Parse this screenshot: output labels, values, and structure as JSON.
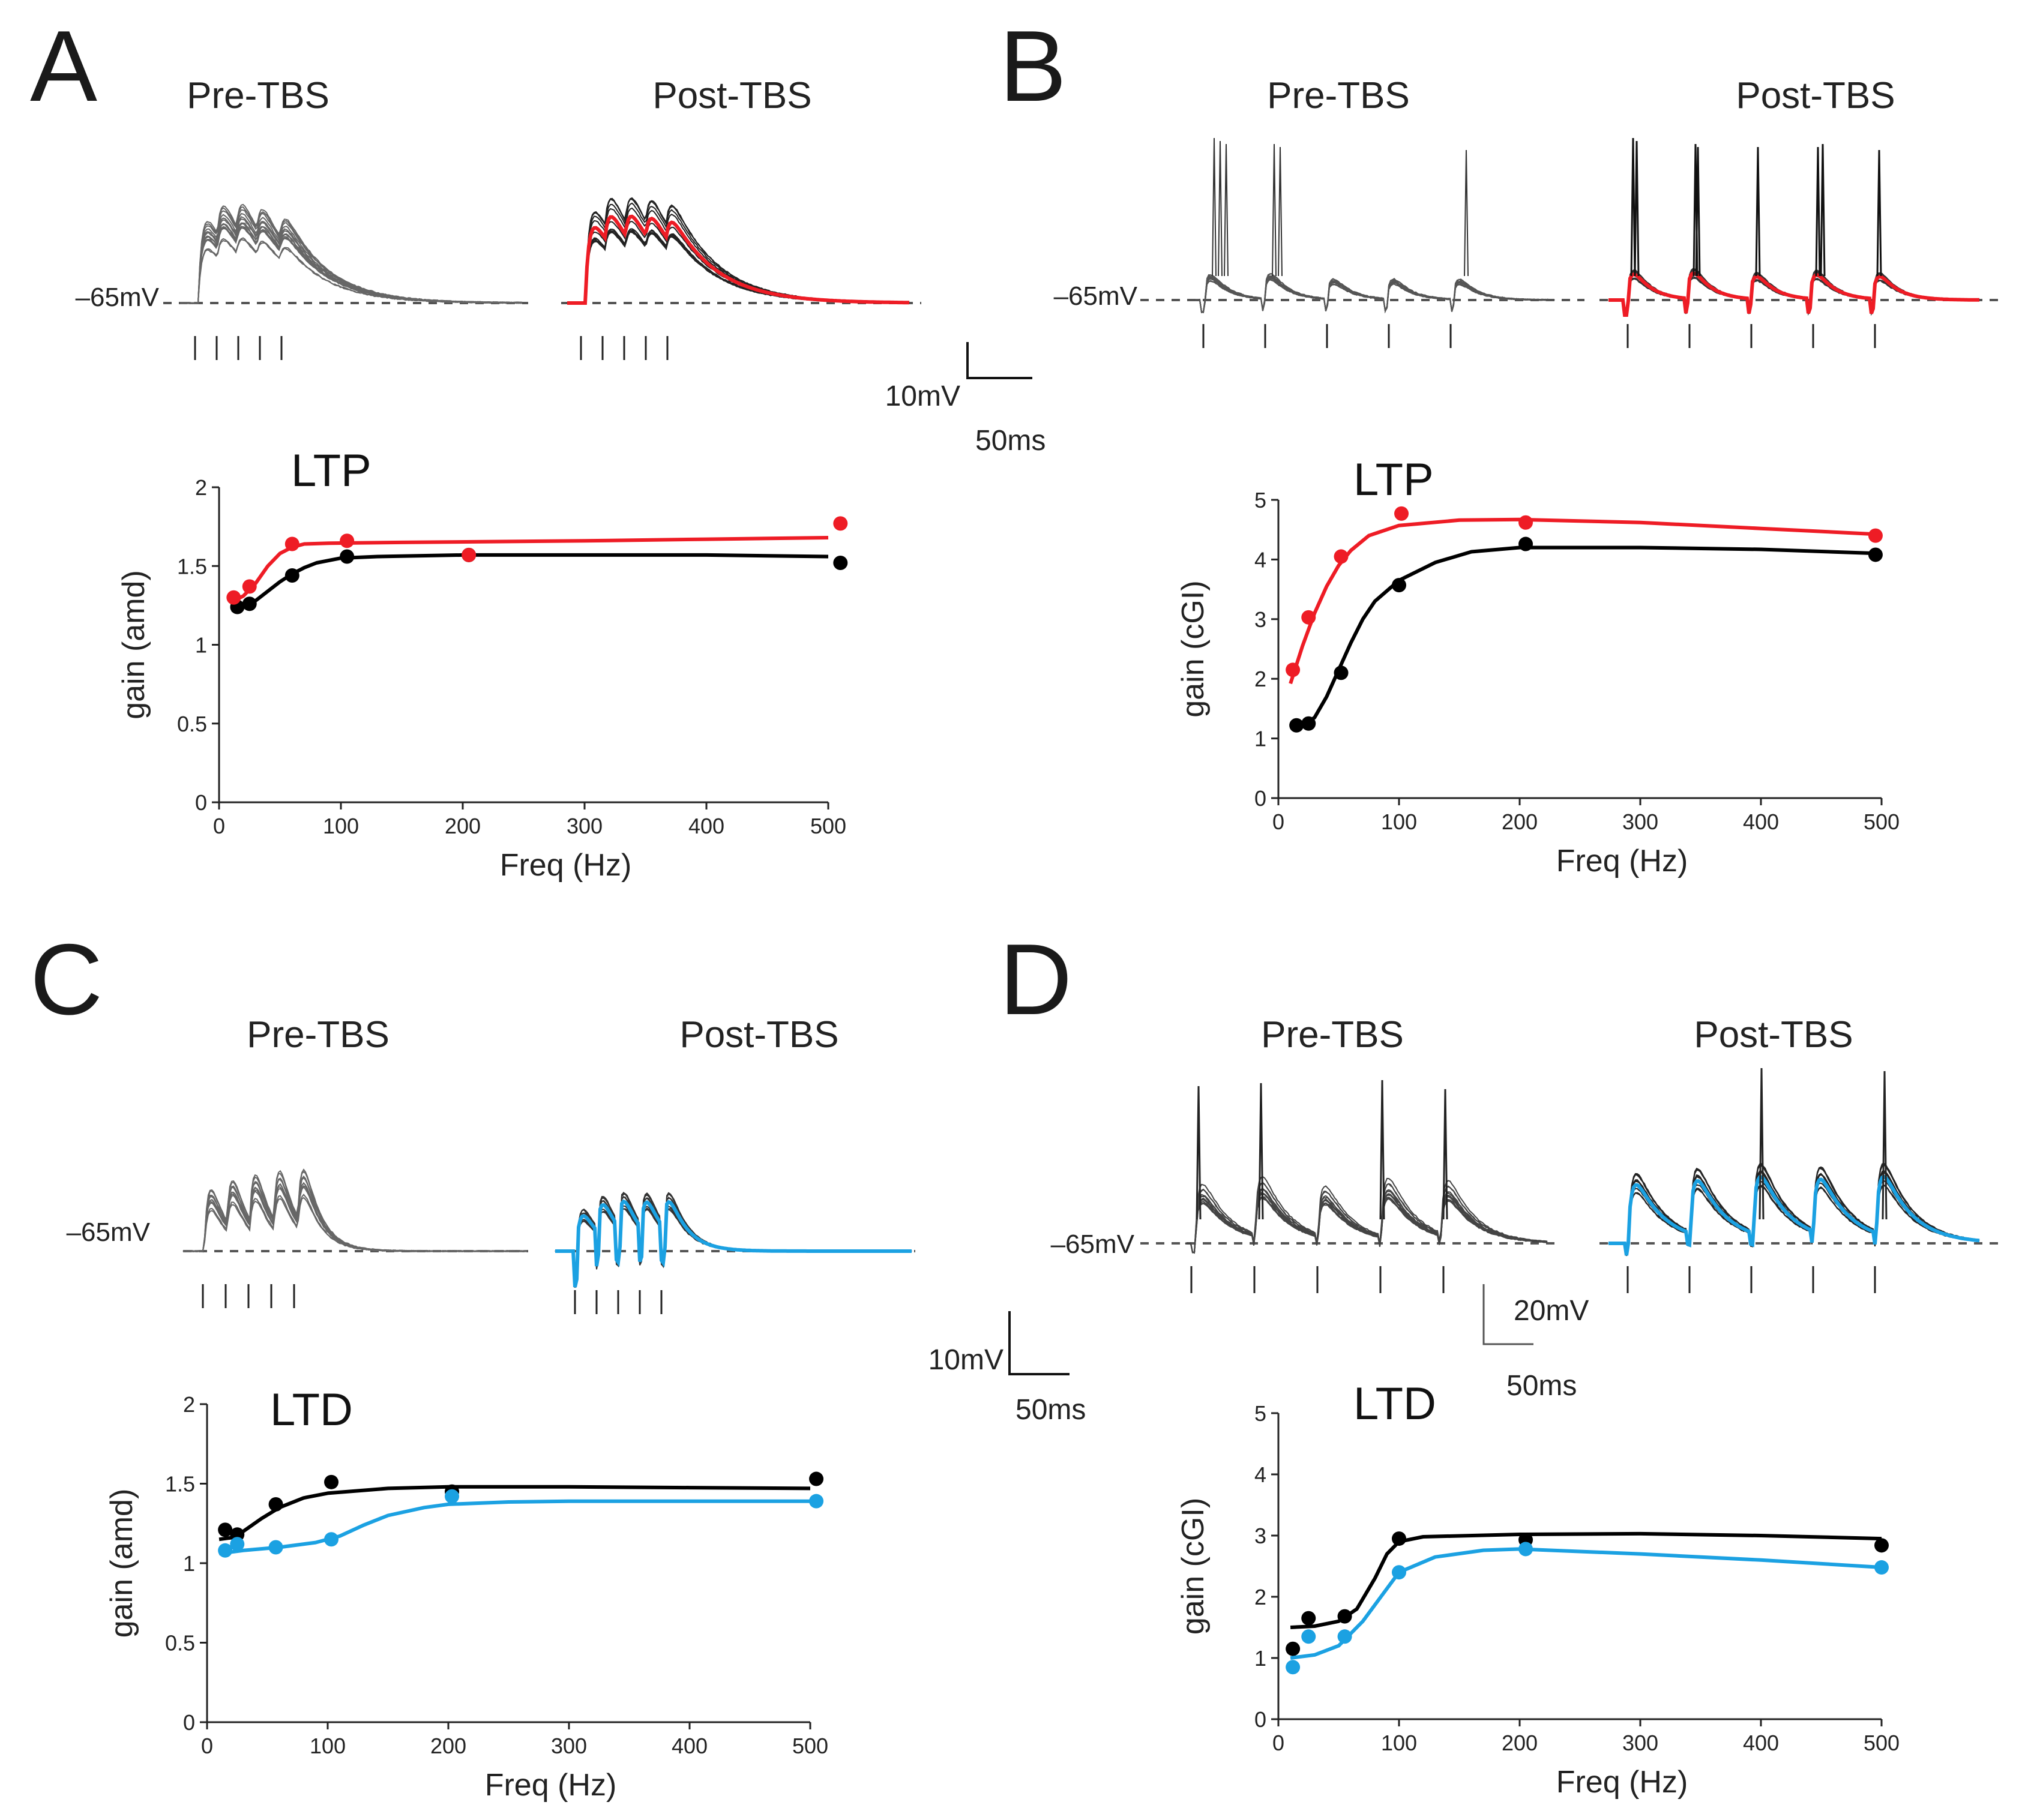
{
  "colors": {
    "pre": "#000000",
    "post_ltp": "#ee1c25",
    "post_ltd": "#1ba1e2",
    "trace_gray": "#555555",
    "baseline": "#555555"
  },
  "trace_labels": {
    "pre": "Pre-TBS",
    "post": "Post-TBS"
  },
  "baseline_label": "–65mV",
  "scale_bars": {
    "a": {
      "v": "10mV",
      "t": "50ms"
    },
    "c": {
      "v": "10mV",
      "t": "50ms"
    },
    "d": {
      "v": "20mV",
      "t": "50ms"
    }
  },
  "panels": {
    "a": {
      "letter": "A"
    },
    "b": {
      "letter": "B"
    },
    "c": {
      "letter": "C"
    },
    "d": {
      "letter": "D"
    }
  },
  "chart_data": [
    {
      "id": "A",
      "type": "scatter",
      "title": "LTP",
      "xlabel": "Freq (Hz)",
      "ylabel": "gain (amd)",
      "xlim": [
        0,
        500
      ],
      "ylim": [
        0,
        2
      ],
      "xticks": [
        0,
        100,
        200,
        300,
        400,
        500
      ],
      "yticks": [
        0,
        0.5,
        1,
        1.5,
        2
      ],
      "ytick_labels": [
        "0",
        "0.5",
        "1",
        "1.5",
        "2"
      ],
      "series": [
        {
          "name": "Pre-TBS",
          "color": "#000000",
          "points": [
            [
              15,
              1.24
            ],
            [
              25,
              1.26
            ],
            [
              60,
              1.44
            ],
            [
              105,
              1.56
            ],
            [
              205,
              1.57
            ],
            [
              510,
              1.52
            ]
          ],
          "fit": [
            [
              10,
              1.22
            ],
            [
              20,
              1.24
            ],
            [
              30,
              1.28
            ],
            [
              40,
              1.34
            ],
            [
              50,
              1.4
            ],
            [
              60,
              1.45
            ],
            [
              70,
              1.49
            ],
            [
              80,
              1.52
            ],
            [
              100,
              1.55
            ],
            [
              130,
              1.56
            ],
            [
              200,
              1.57
            ],
            [
              300,
              1.57
            ],
            [
              400,
              1.57
            ],
            [
              500,
              1.56
            ]
          ]
        },
        {
          "name": "Post-TBS",
          "color": "#ee1c25",
          "points": [
            [
              12,
              1.3
            ],
            [
              25,
              1.37
            ],
            [
              60,
              1.64
            ],
            [
              105,
              1.66
            ],
            [
              205,
              1.57
            ],
            [
              510,
              1.77
            ]
          ],
          "fit": [
            [
              10,
              1.27
            ],
            [
              20,
              1.31
            ],
            [
              30,
              1.39
            ],
            [
              40,
              1.5
            ],
            [
              50,
              1.58
            ],
            [
              60,
              1.62
            ],
            [
              70,
              1.64
            ],
            [
              90,
              1.645
            ],
            [
              150,
              1.65
            ],
            [
              300,
              1.66
            ],
            [
              400,
              1.67
            ],
            [
              500,
              1.68
            ]
          ]
        }
      ]
    },
    {
      "id": "B",
      "type": "scatter",
      "title": "LTP",
      "xlabel": "Freq (Hz)",
      "ylabel": "gain (cGI)",
      "xlim": [
        0,
        500
      ],
      "ylim": [
        0,
        5
      ],
      "xticks": [
        0,
        100,
        200,
        300,
        400,
        500
      ],
      "yticks": [
        0,
        1,
        2,
        3,
        4,
        5
      ],
      "ytick_labels": [
        "0",
        "1",
        "2",
        "3",
        "4",
        "5"
      ],
      "series": [
        {
          "name": "Pre-TBS",
          "color": "#000000",
          "points": [
            [
              15,
              1.22
            ],
            [
              25,
              1.25
            ],
            [
              52,
              2.1
            ],
            [
              100,
              3.57
            ],
            [
              205,
              4.26
            ],
            [
              495,
              4.08
            ]
          ],
          "fit": [
            [
              10,
              1.18
            ],
            [
              20,
              1.22
            ],
            [
              30,
              1.35
            ],
            [
              40,
              1.7
            ],
            [
              50,
              2.15
            ],
            [
              60,
              2.6
            ],
            [
              70,
              3.0
            ],
            [
              80,
              3.3
            ],
            [
              100,
              3.65
            ],
            [
              130,
              3.95
            ],
            [
              160,
              4.13
            ],
            [
              200,
              4.2
            ],
            [
              300,
              4.2
            ],
            [
              400,
              4.17
            ],
            [
              500,
              4.1
            ]
          ]
        },
        {
          "name": "Post-TBS",
          "color": "#ee1c25",
          "points": [
            [
              12,
              2.15
            ],
            [
              25,
              3.03
            ],
            [
              52,
              4.05
            ],
            [
              102,
              4.77
            ],
            [
              205,
              4.62
            ],
            [
              495,
              4.4
            ]
          ],
          "fit": [
            [
              10,
              1.92
            ],
            [
              20,
              2.55
            ],
            [
              30,
              3.1
            ],
            [
              40,
              3.55
            ],
            [
              50,
              3.9
            ],
            [
              60,
              4.15
            ],
            [
              75,
              4.4
            ],
            [
              100,
              4.57
            ],
            [
              150,
              4.66
            ],
            [
              200,
              4.67
            ],
            [
              300,
              4.62
            ],
            [
              400,
              4.52
            ],
            [
              500,
              4.42
            ]
          ]
        }
      ]
    },
    {
      "id": "C",
      "type": "scatter",
      "title": "LTD",
      "xlabel": "Freq (Hz)",
      "ylabel": "gain (amd)",
      "xlim": [
        0,
        500
      ],
      "ylim": [
        0,
        2
      ],
      "xticks": [
        0,
        100,
        200,
        300,
        400,
        500
      ],
      "yticks": [
        0,
        0.5,
        1,
        1.5,
        2
      ],
      "ytick_labels": [
        "0",
        "0.5",
        "1",
        "1.5",
        "2"
      ],
      "series": [
        {
          "name": "Pre-TBS",
          "color": "#000000",
          "points": [
            [
              15,
              1.21
            ],
            [
              25,
              1.18
            ],
            [
              57,
              1.37
            ],
            [
              103,
              1.51
            ],
            [
              203,
              1.45
            ],
            [
              505,
              1.53
            ]
          ],
          "fit": [
            [
              10,
              1.15
            ],
            [
              20,
              1.16
            ],
            [
              30,
              1.2
            ],
            [
              45,
              1.28
            ],
            [
              60,
              1.35
            ],
            [
              80,
              1.41
            ],
            [
              100,
              1.44
            ],
            [
              150,
              1.47
            ],
            [
              200,
              1.48
            ],
            [
              300,
              1.48
            ],
            [
              400,
              1.475
            ],
            [
              500,
              1.47
            ]
          ]
        },
        {
          "name": "Post-TBS",
          "color": "#1ba1e2",
          "points": [
            [
              15,
              1.08
            ],
            [
              25,
              1.12
            ],
            [
              57,
              1.1
            ],
            [
              103,
              1.15
            ],
            [
              203,
              1.42
            ],
            [
              505,
              1.39
            ]
          ],
          "fit": [
            [
              10,
              1.06
            ],
            [
              30,
              1.08
            ],
            [
              60,
              1.1
            ],
            [
              90,
              1.13
            ],
            [
              110,
              1.17
            ],
            [
              130,
              1.24
            ],
            [
              150,
              1.3
            ],
            [
              180,
              1.35
            ],
            [
              200,
              1.37
            ],
            [
              250,
              1.385
            ],
            [
              300,
              1.39
            ],
            [
              400,
              1.39
            ],
            [
              500,
              1.39
            ]
          ]
        }
      ]
    },
    {
      "id": "D",
      "type": "scatter",
      "title": "LTD",
      "xlabel": "Freq (Hz)",
      "ylabel": "gain (cGI)",
      "xlim": [
        0,
        500
      ],
      "ylim": [
        0,
        5
      ],
      "xticks": [
        0,
        100,
        200,
        300,
        400,
        500
      ],
      "yticks": [
        0,
        1,
        2,
        3,
        4,
        5
      ],
      "ytick_labels": [
        "0",
        "1",
        "2",
        "3",
        "4",
        "5"
      ],
      "series": [
        {
          "name": "Pre-TBS",
          "color": "#000000",
          "points": [
            [
              12,
              1.15
            ],
            [
              25,
              1.65
            ],
            [
              55,
              1.68
            ],
            [
              100,
              2.95
            ],
            [
              205,
              2.93
            ],
            [
              500,
              2.84
            ]
          ],
          "fit": [
            [
              10,
              1.5
            ],
            [
              30,
              1.52
            ],
            [
              50,
              1.6
            ],
            [
              65,
              1.8
            ],
            [
              80,
              2.3
            ],
            [
              90,
              2.7
            ],
            [
              100,
              2.9
            ],
            [
              120,
              2.98
            ],
            [
              200,
              3.02
            ],
            [
              300,
              3.03
            ],
            [
              400,
              3.0
            ],
            [
              500,
              2.95
            ]
          ]
        },
        {
          "name": "Post-TBS",
          "color": "#1ba1e2",
          "points": [
            [
              12,
              0.85
            ],
            [
              25,
              1.35
            ],
            [
              55,
              1.35
            ],
            [
              100,
              2.4
            ],
            [
              205,
              2.78
            ],
            [
              500,
              2.48
            ]
          ],
          "fit": [
            [
              10,
              1.0
            ],
            [
              30,
              1.05
            ],
            [
              50,
              1.2
            ],
            [
              70,
              1.6
            ],
            [
              85,
              2.0
            ],
            [
              100,
              2.4
            ],
            [
              130,
              2.65
            ],
            [
              170,
              2.76
            ],
            [
              200,
              2.78
            ],
            [
              300,
              2.7
            ],
            [
              400,
              2.6
            ],
            [
              500,
              2.48
            ]
          ]
        }
      ]
    }
  ]
}
